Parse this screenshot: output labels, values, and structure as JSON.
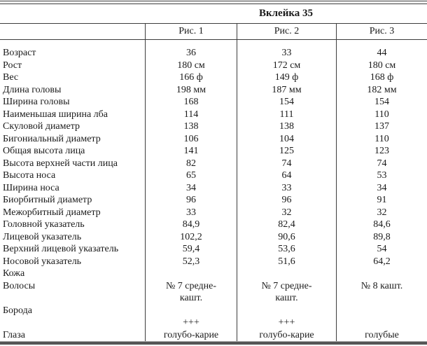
{
  "title": "Вклейка 35",
  "columns": [
    "Рис. 1",
    "Рис. 2",
    "Рис. 3"
  ],
  "rows": [
    [
      "Возраст",
      "36",
      "33",
      "44"
    ],
    [
      "Рост",
      "180 см",
      "172 см",
      "180 см"
    ],
    [
      "Вес",
      "166 ф",
      "149 ф",
      "168 ф"
    ],
    [
      "Длина головы",
      "198 мм",
      "187 мм",
      "182 мм"
    ],
    [
      "Ширина головы",
      "168",
      "154",
      "154"
    ],
    [
      "Наименьшая ширина лба",
      "114",
      "111",
      "110"
    ],
    [
      "Скуловой диаметр",
      "138",
      "138",
      "137"
    ],
    [
      "Бигониальный диаметр",
      "106",
      "104",
      "110"
    ],
    [
      "Общая высота лица",
      "141",
      "125",
      "123"
    ],
    [
      "Высота верхней части лица",
      "82",
      "74",
      "74"
    ],
    [
      "Высота носа",
      "65",
      "64",
      "53"
    ],
    [
      "Ширина носа",
      "34",
      "33",
      "34"
    ],
    [
      "Биорбитный диаметр",
      "96",
      "96",
      "91"
    ],
    [
      "Межорбитный диаметр",
      "33",
      "32",
      "32"
    ],
    [
      "Головной указатель",
      "84,9",
      "82,4",
      "84,6"
    ],
    [
      "Лицевой указатель",
      "102,2",
      "90,6",
      "89,8"
    ],
    [
      "Верхний лицевой указатель",
      "59,4",
      "53,6",
      "54"
    ],
    [
      "Носовой указатель",
      "52,3",
      "51,6",
      "64,2"
    ],
    [
      "Кожа",
      "",
      "",
      ""
    ],
    [
      "Волосы",
      "№ 7 средне-",
      "№ 7 средне-",
      "№ 8 кашт."
    ],
    [
      "",
      "кашт.",
      "кашт.",
      ""
    ],
    [
      "Борода",
      "",
      "",
      ""
    ],
    [
      "",
      "+++",
      "+++",
      ""
    ],
    [
      "Глаза",
      "голубо-карие",
      "голубо-карие",
      "голубые"
    ]
  ]
}
